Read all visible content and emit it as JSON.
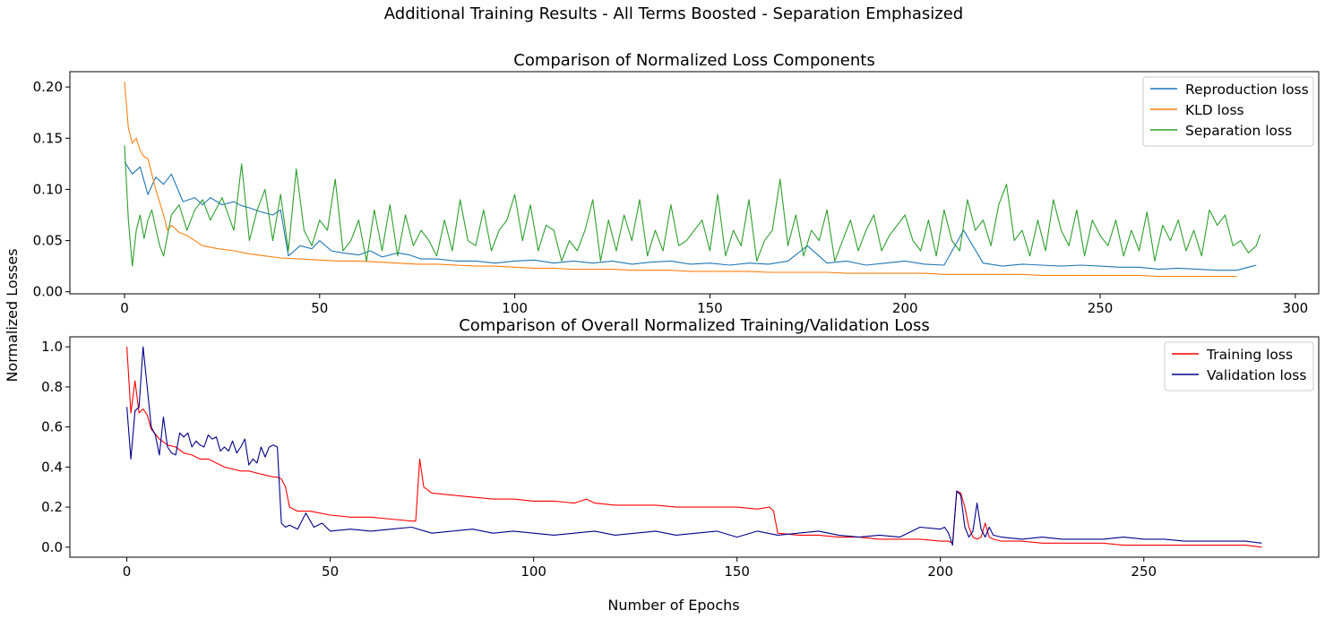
{
  "figure": {
    "suptitle": "Additional Training Results - All Terms Boosted - Separation Emphasized",
    "ylabel": "Normalized Losses",
    "xlabel": "Number of Epochs"
  },
  "chart_data": [
    {
      "type": "line",
      "title": "Comparison of Normalized Loss Components",
      "xlabel": "",
      "ylabel": "Normalized Losses",
      "xlim": [
        -14,
        306
      ],
      "ylim": [
        -0.002,
        0.215
      ],
      "xticks": [
        0,
        50,
        100,
        150,
        200,
        250,
        300
      ],
      "yticks": [
        0.0,
        0.05,
        0.1,
        0.15,
        0.2
      ],
      "ytick_labels": [
        "0.00",
        "0.05",
        "0.10",
        "0.15",
        "0.20"
      ],
      "grid": false,
      "legend_position": "top-right",
      "series": [
        {
          "name": "Reproduction loss",
          "color": "#1f77b4",
          "x": [
            0,
            2,
            4,
            6,
            8,
            10,
            12,
            15,
            18,
            20,
            22,
            25,
            28,
            30,
            32,
            35,
            38,
            40,
            42,
            45,
            48,
            50,
            53,
            56,
            60,
            63,
            66,
            70,
            73,
            76,
            80,
            85,
            90,
            95,
            100,
            105,
            110,
            115,
            120,
            125,
            130,
            135,
            140,
            145,
            150,
            155,
            160,
            165,
            170,
            175,
            180,
            185,
            190,
            195,
            200,
            205,
            210,
            215,
            220,
            225,
            230,
            235,
            240,
            245,
            250,
            255,
            260,
            265,
            270,
            275,
            280,
            285,
            290
          ],
          "y": [
            0.127,
            0.115,
            0.122,
            0.095,
            0.112,
            0.105,
            0.115,
            0.088,
            0.092,
            0.085,
            0.092,
            0.085,
            0.088,
            0.084,
            0.082,
            0.078,
            0.075,
            0.08,
            0.035,
            0.045,
            0.042,
            0.05,
            0.04,
            0.038,
            0.036,
            0.04,
            0.034,
            0.038,
            0.036,
            0.032,
            0.032,
            0.03,
            0.03,
            0.028,
            0.03,
            0.031,
            0.028,
            0.03,
            0.028,
            0.03,
            0.027,
            0.029,
            0.03,
            0.027,
            0.028,
            0.026,
            0.028,
            0.027,
            0.03,
            0.045,
            0.028,
            0.03,
            0.026,
            0.028,
            0.03,
            0.027,
            0.026,
            0.06,
            0.028,
            0.025,
            0.027,
            0.026,
            0.025,
            0.026,
            0.025,
            0.024,
            0.024,
            0.022,
            0.023,
            0.022,
            0.021,
            0.021,
            0.026
          ]
        },
        {
          "name": "KLD loss",
          "color": "#ff7f0e",
          "x": [
            0,
            1,
            2,
            3,
            4,
            5,
            6,
            8,
            10,
            11,
            12,
            14,
            16,
            18,
            20,
            24,
            28,
            32,
            36,
            40,
            45,
            50,
            55,
            60,
            65,
            70,
            75,
            80,
            85,
            90,
            95,
            100,
            105,
            110,
            115,
            120,
            125,
            130,
            135,
            140,
            145,
            150,
            155,
            160,
            165,
            170,
            175,
            180,
            185,
            190,
            195,
            200,
            205,
            210,
            215,
            220,
            225,
            230,
            235,
            240,
            245,
            250,
            255,
            260,
            265,
            270,
            275,
            280,
            285
          ],
          "y": [
            0.205,
            0.16,
            0.145,
            0.15,
            0.138,
            0.132,
            0.13,
            0.1,
            0.075,
            0.06,
            0.065,
            0.058,
            0.055,
            0.05,
            0.045,
            0.042,
            0.04,
            0.037,
            0.035,
            0.033,
            0.032,
            0.031,
            0.03,
            0.03,
            0.029,
            0.028,
            0.027,
            0.027,
            0.026,
            0.025,
            0.025,
            0.024,
            0.023,
            0.023,
            0.022,
            0.022,
            0.022,
            0.021,
            0.021,
            0.021,
            0.02,
            0.02,
            0.02,
            0.02,
            0.019,
            0.019,
            0.019,
            0.019,
            0.018,
            0.018,
            0.018,
            0.018,
            0.018,
            0.017,
            0.017,
            0.017,
            0.017,
            0.017,
            0.016,
            0.016,
            0.016,
            0.016,
            0.016,
            0.016,
            0.015,
            0.015,
            0.015,
            0.015,
            0.015
          ]
        },
        {
          "name": "Separation loss",
          "color": "#2ca02c",
          "x": [
            0,
            1,
            2,
            3,
            4,
            5,
            6,
            7,
            8,
            9,
            10,
            12,
            14,
            16,
            18,
            20,
            22,
            25,
            28,
            30,
            32,
            34,
            36,
            38,
            40,
            42,
            44,
            46,
            48,
            50,
            52,
            54,
            56,
            58,
            60,
            62,
            64,
            66,
            68,
            70,
            72,
            74,
            76,
            78,
            80,
            82,
            84,
            86,
            88,
            90,
            92,
            94,
            96,
            98,
            100,
            102,
            104,
            106,
            108,
            110,
            112,
            114,
            116,
            118,
            120,
            122,
            124,
            126,
            128,
            130,
            132,
            134,
            136,
            138,
            140,
            142,
            144,
            146,
            148,
            150,
            152,
            154,
            156,
            158,
            160,
            162,
            164,
            166,
            168,
            170,
            172,
            174,
            176,
            178,
            180,
            182,
            184,
            186,
            188,
            190,
            192,
            194,
            196,
            198,
            200,
            202,
            204,
            206,
            208,
            210,
            212,
            214,
            216,
            218,
            220,
            222,
            224,
            226,
            228,
            230,
            232,
            234,
            236,
            238,
            240,
            242,
            244,
            246,
            248,
            250,
            252,
            254,
            256,
            258,
            260,
            262,
            264,
            266,
            268,
            270,
            272,
            274,
            276,
            278,
            280,
            282,
            284,
            286,
            288,
            290,
            291
          ],
          "y": [
            0.143,
            0.07,
            0.025,
            0.06,
            0.075,
            0.052,
            0.07,
            0.08,
            0.062,
            0.045,
            0.035,
            0.075,
            0.085,
            0.06,
            0.08,
            0.09,
            0.07,
            0.092,
            0.06,
            0.125,
            0.05,
            0.08,
            0.1,
            0.05,
            0.095,
            0.04,
            0.12,
            0.06,
            0.045,
            0.07,
            0.06,
            0.11,
            0.04,
            0.05,
            0.07,
            0.03,
            0.08,
            0.04,
            0.085,
            0.035,
            0.075,
            0.045,
            0.06,
            0.05,
            0.035,
            0.07,
            0.04,
            0.09,
            0.05,
            0.045,
            0.08,
            0.04,
            0.06,
            0.07,
            0.095,
            0.05,
            0.085,
            0.04,
            0.065,
            0.06,
            0.03,
            0.05,
            0.04,
            0.06,
            0.09,
            0.03,
            0.07,
            0.04,
            0.075,
            0.05,
            0.09,
            0.035,
            0.06,
            0.04,
            0.085,
            0.045,
            0.05,
            0.06,
            0.07,
            0.04,
            0.095,
            0.035,
            0.06,
            0.045,
            0.09,
            0.03,
            0.05,
            0.06,
            0.11,
            0.045,
            0.075,
            0.035,
            0.06,
            0.05,
            0.08,
            0.03,
            0.05,
            0.07,
            0.04,
            0.06,
            0.075,
            0.04,
            0.055,
            0.065,
            0.075,
            0.05,
            0.04,
            0.07,
            0.035,
            0.08,
            0.05,
            0.04,
            0.09,
            0.06,
            0.07,
            0.045,
            0.085,
            0.105,
            0.05,
            0.06,
            0.035,
            0.07,
            0.04,
            0.09,
            0.06,
            0.045,
            0.08,
            0.035,
            0.07,
            0.055,
            0.045,
            0.07,
            0.035,
            0.06,
            0.04,
            0.078,
            0.03,
            0.065,
            0.05,
            0.07,
            0.04,
            0.06,
            0.035,
            0.08,
            0.065,
            0.075,
            0.045,
            0.05,
            0.038,
            0.045,
            0.056
          ]
        }
      ]
    },
    {
      "type": "line",
      "title": "Comparison of Overall Normalized Training/Validation Loss",
      "xlabel": "Number of Epochs",
      "ylabel": "Normalized Losses",
      "xlim": [
        -14,
        293
      ],
      "ylim": [
        -0.05,
        1.05
      ],
      "xticks": [
        0,
        50,
        100,
        150,
        200,
        250
      ],
      "yticks": [
        0.0,
        0.2,
        0.4,
        0.6,
        0.8,
        1.0
      ],
      "ytick_labels": [
        "0.0",
        "0.2",
        "0.4",
        "0.6",
        "0.8",
        "1.0"
      ],
      "grid": false,
      "legend_position": "top-right",
      "series": [
        {
          "name": "Training loss",
          "color": "#ff0000",
          "x": [
            0,
            1,
            2,
            3,
            4,
            5,
            6,
            8,
            10,
            12,
            14,
            16,
            18,
            20,
            22,
            24,
            26,
            28,
            30,
            32,
            34,
            36,
            37,
            38,
            39,
            40,
            42,
            45,
            50,
            55,
            60,
            65,
            70,
            71,
            72,
            73,
            75,
            80,
            85,
            90,
            95,
            100,
            105,
            110,
            113,
            115,
            120,
            125,
            130,
            135,
            140,
            145,
            150,
            155,
            158,
            159,
            160,
            165,
            170,
            175,
            180,
            185,
            190,
            195,
            200,
            202,
            203,
            204,
            205,
            206,
            207,
            208,
            209,
            210,
            211,
            212,
            213,
            215,
            220,
            225,
            230,
            235,
            240,
            245,
            250,
            255,
            260,
            265,
            270,
            275,
            279
          ],
          "y": [
            1.0,
            0.67,
            0.83,
            0.67,
            0.69,
            0.66,
            0.59,
            0.54,
            0.51,
            0.5,
            0.47,
            0.46,
            0.44,
            0.44,
            0.42,
            0.4,
            0.39,
            0.38,
            0.38,
            0.37,
            0.36,
            0.35,
            0.35,
            0.34,
            0.3,
            0.2,
            0.18,
            0.18,
            0.16,
            0.15,
            0.15,
            0.14,
            0.13,
            0.13,
            0.44,
            0.3,
            0.27,
            0.26,
            0.25,
            0.24,
            0.24,
            0.23,
            0.23,
            0.22,
            0.24,
            0.22,
            0.21,
            0.21,
            0.21,
            0.2,
            0.2,
            0.2,
            0.2,
            0.19,
            0.2,
            0.18,
            0.07,
            0.06,
            0.06,
            0.05,
            0.05,
            0.04,
            0.04,
            0.04,
            0.03,
            0.03,
            0.02,
            0.28,
            0.27,
            0.2,
            0.1,
            0.05,
            0.04,
            0.05,
            0.12,
            0.05,
            0.04,
            0.03,
            0.03,
            0.02,
            0.02,
            0.02,
            0.02,
            0.01,
            0.01,
            0.01,
            0.01,
            0.01,
            0.01,
            0.01,
            0.0
          ]
        },
        {
          "name": "Validation loss",
          "color": "#00008b",
          "x": [
            0,
            1,
            2,
            3,
            4,
            5,
            6,
            7,
            8,
            9,
            10,
            11,
            12,
            13,
            14,
            15,
            16,
            17,
            18,
            19,
            20,
            21,
            22,
            23,
            24,
            25,
            26,
            27,
            28,
            29,
            30,
            31,
            32,
            33,
            34,
            35,
            36,
            37,
            38,
            39,
            40,
            42,
            44,
            46,
            48,
            50,
            55,
            60,
            65,
            70,
            75,
            80,
            85,
            90,
            95,
            100,
            105,
            110,
            115,
            120,
            125,
            130,
            135,
            140,
            145,
            150,
            155,
            160,
            165,
            170,
            175,
            180,
            185,
            190,
            195,
            200,
            201,
            202,
            203,
            204,
            205,
            206,
            207,
            208,
            209,
            210,
            211,
            212,
            213,
            215,
            220,
            225,
            230,
            235,
            240,
            245,
            250,
            255,
            260,
            265,
            270,
            275,
            279
          ],
          "y": [
            0.7,
            0.44,
            0.68,
            0.7,
            1.0,
            0.8,
            0.6,
            0.56,
            0.46,
            0.65,
            0.5,
            0.47,
            0.46,
            0.57,
            0.55,
            0.57,
            0.5,
            0.53,
            0.51,
            0.5,
            0.56,
            0.54,
            0.55,
            0.48,
            0.5,
            0.48,
            0.53,
            0.47,
            0.5,
            0.54,
            0.41,
            0.44,
            0.42,
            0.5,
            0.45,
            0.5,
            0.51,
            0.5,
            0.12,
            0.1,
            0.11,
            0.09,
            0.17,
            0.1,
            0.12,
            0.08,
            0.09,
            0.08,
            0.09,
            0.1,
            0.07,
            0.08,
            0.09,
            0.07,
            0.08,
            0.07,
            0.06,
            0.07,
            0.08,
            0.06,
            0.07,
            0.08,
            0.06,
            0.07,
            0.08,
            0.05,
            0.08,
            0.06,
            0.07,
            0.08,
            0.06,
            0.05,
            0.06,
            0.05,
            0.1,
            0.09,
            0.1,
            0.07,
            0.01,
            0.28,
            0.26,
            0.1,
            0.05,
            0.08,
            0.22,
            0.09,
            0.05,
            0.1,
            0.06,
            0.05,
            0.04,
            0.05,
            0.04,
            0.04,
            0.04,
            0.05,
            0.04,
            0.04,
            0.03,
            0.03,
            0.03,
            0.03,
            0.02
          ]
        }
      ]
    }
  ]
}
